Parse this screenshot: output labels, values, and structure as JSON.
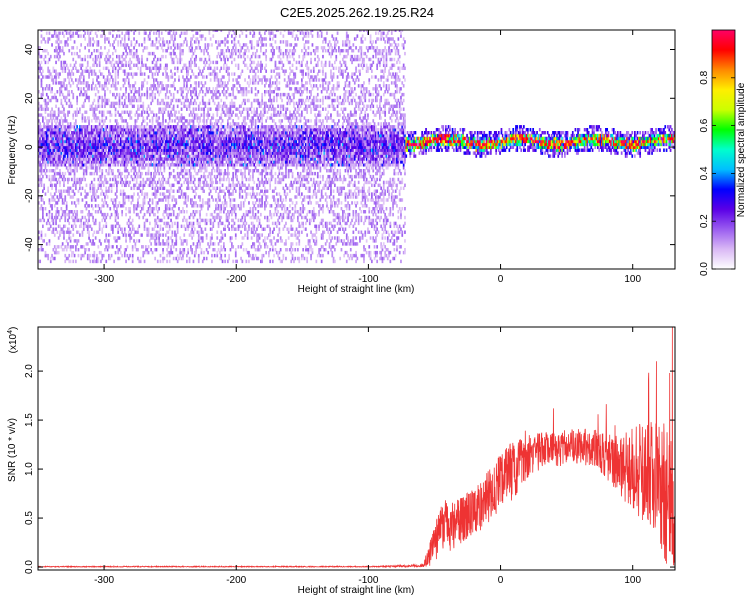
{
  "figure": {
    "title": "C2E5.2025.262.19.25.R24"
  },
  "chart_data": [
    {
      "type": "heatmap",
      "xlabel": "Height of straight line (km)",
      "ylabel": "Frequency (Hz)",
      "xlim": [
        -350,
        132
      ],
      "ylim": [
        -50,
        48
      ],
      "xticks": [
        -300,
        -200,
        -100,
        0,
        100
      ],
      "yticks": [
        -40,
        -20,
        0,
        20,
        40
      ],
      "xtick_labels": [
        "-300",
        "-200",
        "-100",
        "0",
        "100"
      ],
      "ytick_labels": [
        "-40",
        "-20",
        "0",
        "20",
        "40"
      ],
      "colorbar": {
        "label": "Normalized spectral amplitude",
        "range": [
          0,
          1
        ],
        "ticks": [
          0.0,
          0.2,
          0.4,
          0.6,
          0.8
        ],
        "tick_labels": [
          "0.0",
          "0.2",
          "0.4",
          "0.6",
          "0.8"
        ],
        "colormap": [
          "#ffffff",
          "#d9b8f5",
          "#9a5cf0",
          "#5a00e6",
          "#0000ff",
          "#00bfff",
          "#00ffcc",
          "#00ff00",
          "#ccff00",
          "#ffee00",
          "#ff8800",
          "#ff0000",
          "#ff0066"
        ]
      },
      "regions": [
        {
          "name": "",
          "x_range": [
            -350,
            -72
          ],
          "center_freq": 0,
          "core_halfwidth": 8,
          "spread_halfwidth": 48,
          "core_amplitude": 0.22,
          "spread_amplitude": 0.06
        },
        {
          "name": "",
          "x_range": [
            -72,
            132
          ],
          "center_freq": 1.5,
          "core_halfwidth": 2.5,
          "spread_halfwidth": 5,
          "core_amplitude": 0.7,
          "spread_amplitude": 0.12
        }
      ],
      "grid": false
    },
    {
      "type": "line",
      "xlabel": "Height of straight line (km)",
      "ylabel": "SNR (10 * v/v)",
      "y_multiplier_label": "(x10",
      "y_multiplier_exp": "4",
      "y_multiplier_close": ")",
      "xlim": [
        -350,
        132
      ],
      "ylim": [
        -0.03,
        2.45
      ],
      "xticks": [
        -300,
        -200,
        -100,
        0,
        100
      ],
      "yticks": [
        0.0,
        0.5,
        1.0,
        1.5,
        2.0
      ],
      "xtick_labels": [
        "-300",
        "-200",
        "-100",
        "0",
        "100"
      ],
      "ytick_labels": [
        "0.0",
        "0.5",
        "1.0",
        "1.5",
        "2.0"
      ],
      "series": [
        {
          "color": "#ee3333",
          "envelope": {
            "x": [
              -350,
              -100,
              -60,
              -55,
              -50,
              -45,
              -40,
              -30,
              -20,
              -10,
              0,
              10,
              20,
              30,
              40,
              50,
              60,
              70,
              80,
              90,
              100,
              110,
              120,
              125,
              130,
              132
            ],
            "mean": [
              0.0,
              0.0,
              0.01,
              0.08,
              0.25,
              0.45,
              0.4,
              0.48,
              0.58,
              0.7,
              0.85,
              1.0,
              1.12,
              1.18,
              1.2,
              1.22,
              1.24,
              1.2,
              1.15,
              1.05,
              1.0,
              0.95,
              0.9,
              0.7,
              0.4,
              0.0
            ],
            "noise": [
              0.006,
              0.006,
              0.02,
              0.1,
              0.2,
              0.3,
              0.25,
              0.25,
              0.25,
              0.28,
              0.3,
              0.3,
              0.22,
              0.2,
              0.18,
              0.18,
              0.18,
              0.2,
              0.25,
              0.3,
              0.45,
              0.55,
              0.6,
              0.8,
              0.9,
              0.9
            ]
          },
          "notable_peaks": [
            {
              "x": 130,
              "y": 2.45
            },
            {
              "x": 118,
              "y": 2.1
            },
            {
              "x": 128,
              "y": 1.98
            },
            {
              "x": 40,
              "y": 1.62
            }
          ]
        }
      ],
      "grid": false
    }
  ]
}
